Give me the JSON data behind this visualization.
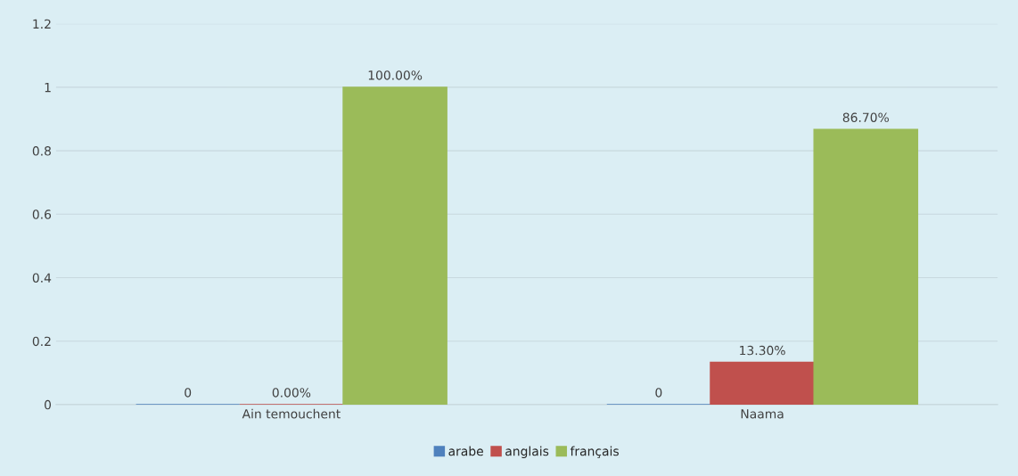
{
  "chart_data": {
    "type": "bar",
    "categories": [
      "Ain temouchent",
      "Naama"
    ],
    "series": [
      {
        "name": "arabe",
        "color": "#4f81bd",
        "values": [
          0,
          0
        ],
        "value_labels": [
          "0",
          "0"
        ]
      },
      {
        "name": "anglais",
        "color": "#c0504d",
        "values": [
          0,
          0.133
        ],
        "value_labels": [
          "0.00%",
          "13.30%"
        ]
      },
      {
        "name": "français",
        "color": "#9bbb59",
        "values": [
          1,
          0.867
        ],
        "value_labels": [
          "100.00%",
          "86.70%"
        ]
      }
    ],
    "ylim": [
      0,
      1.2
    ],
    "yticks": [
      0,
      0.2,
      0.4,
      0.6,
      0.8,
      1,
      1.2
    ],
    "grid": "y",
    "legend": "bottom"
  }
}
